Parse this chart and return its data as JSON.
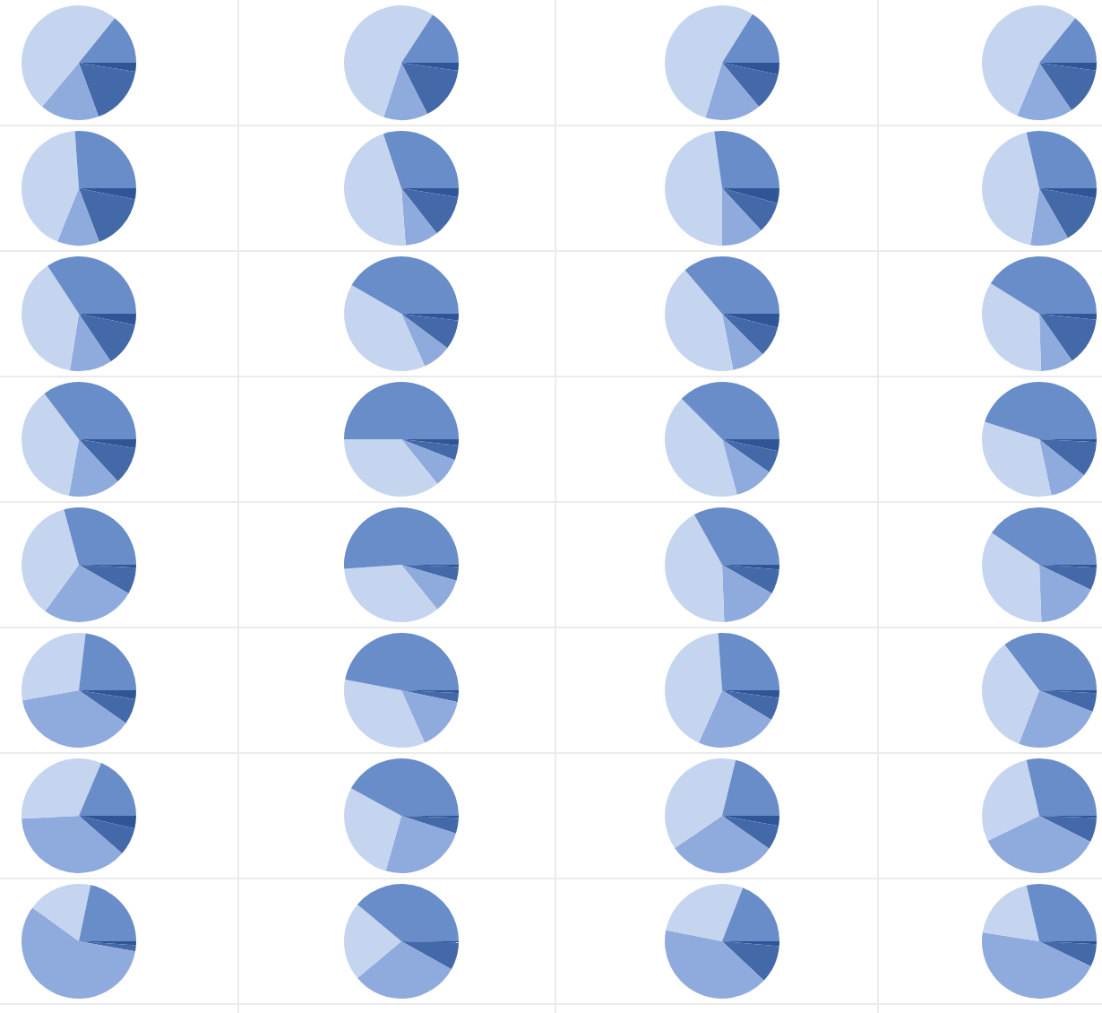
{
  "chart_data": [
    {
      "type": "pie",
      "categories": [
        null,
        null,
        null,
        null,
        null
      ],
      "values": [
        2.5,
        16.9,
        16.7,
        49.7,
        14.2
      ],
      "colors": [
        "#2f5597",
        "#4469a9",
        "#8faadc",
        "#c5d5f0",
        "#698dc8"
      ]
    },
    {
      "type": "pie",
      "categories": [
        null,
        null,
        null,
        null,
        null
      ],
      "values": [
        2.2,
        15.3,
        12.5,
        54.2,
        15.8
      ],
      "colors": [
        "#2f5597",
        "#4469a9",
        "#8faadc",
        "#c5d5f0",
        "#698dc8"
      ]
    },
    {
      "type": "pie",
      "categories": [
        null,
        null,
        null,
        null,
        null
      ],
      "values": [
        3.3,
        10.6,
        15.8,
        54.2,
        16.1
      ],
      "colors": [
        "#2f5597",
        "#4469a9",
        "#8faadc",
        "#c5d5f0",
        "#698dc8"
      ]
    },
    {
      "type": "pie",
      "categories": [
        null,
        null,
        null,
        null,
        null
      ],
      "values": [
        2.2,
        13.3,
        15.8,
        54.5,
        14.2
      ],
      "colors": [
        "#2f5597",
        "#4469a9",
        "#8faadc",
        "#c5d5f0",
        "#698dc8"
      ]
    },
    {
      "type": "pie",
      "categories": [
        null,
        null,
        null,
        null,
        null
      ],
      "values": [
        3.1,
        16.1,
        11.9,
        42.8,
        26.1
      ],
      "colors": [
        "#2f5597",
        "#4469a9",
        "#8faadc",
        "#c5d5f0",
        "#698dc8"
      ]
    },
    {
      "type": "pie",
      "categories": [
        null,
        null,
        null,
        null,
        null
      ],
      "values": [
        2.5,
        11.9,
        9.4,
        46.1,
        30.1
      ],
      "colors": [
        "#2f5597",
        "#4469a9",
        "#8faadc",
        "#c5d5f0",
        "#698dc8"
      ]
    },
    {
      "type": "pie",
      "categories": [
        null,
        null,
        null,
        null,
        null
      ],
      "values": [
        4.2,
        8.9,
        11.9,
        47.8,
        27.2
      ],
      "colors": [
        "#2f5597",
        "#4469a9",
        "#8faadc",
        "#c5d5f0",
        "#698dc8"
      ]
    },
    {
      "type": "pie",
      "categories": [
        null,
        null,
        null,
        null,
        null
      ],
      "values": [
        2.8,
        13.9,
        10.8,
        43.9,
        28.6
      ],
      "colors": [
        "#2f5597",
        "#4469a9",
        "#8faadc",
        "#c5d5f0",
        "#698dc8"
      ]
    },
    {
      "type": "pie",
      "categories": [
        null,
        null,
        null,
        null,
        null
      ],
      "values": [
        3.1,
        12.5,
        11.9,
        38.3,
        34.2
      ],
      "colors": [
        "#2f5597",
        "#4469a9",
        "#8faadc",
        "#c5d5f0",
        "#698dc8"
      ]
    },
    {
      "type": "pie",
      "categories": [
        null,
        null,
        null,
        null,
        null
      ],
      "values": [
        1.9,
        8.3,
        8.1,
        40.0,
        41.7
      ],
      "colors": [
        "#2f5597",
        "#4469a9",
        "#8faadc",
        "#c5d5f0",
        "#698dc8"
      ]
    },
    {
      "type": "pie",
      "categories": [
        null,
        null,
        null,
        null,
        null
      ],
      "values": [
        3.9,
        8.6,
        9.4,
        41.9,
        36.2
      ],
      "colors": [
        "#2f5597",
        "#4469a9",
        "#8faadc",
        "#c5d5f0",
        "#698dc8"
      ]
    },
    {
      "type": "pie",
      "categories": [
        null,
        null,
        null,
        null,
        null
      ],
      "values": [
        1.7,
        13.6,
        9.2,
        34.4,
        41.1
      ],
      "colors": [
        "#2f5597",
        "#4469a9",
        "#8faadc",
        "#c5d5f0",
        "#698dc8"
      ]
    },
    {
      "type": "pie",
      "categories": [
        null,
        null,
        null,
        null,
        null
      ],
      "values": [
        2.5,
        10.6,
        14.7,
        36.9,
        35.3
      ],
      "colors": [
        "#2f5597",
        "#4469a9",
        "#8faadc",
        "#c5d5f0",
        "#698dc8"
      ]
    },
    {
      "type": "pie",
      "categories": [
        null,
        null,
        null,
        null,
        null
      ],
      "values": [
        1.7,
        4.2,
        8.3,
        35.8,
        50.0
      ],
      "colors": [
        "#2f5597",
        "#4469a9",
        "#8faadc",
        "#c5d5f0",
        "#698dc8"
      ]
    },
    {
      "type": "pie",
      "categories": [
        null,
        null,
        null,
        null,
        null
      ],
      "values": [
        3.3,
        6.4,
        11.1,
        41.7,
        37.5
      ],
      "colors": [
        "#2f5597",
        "#4469a9",
        "#8faadc",
        "#c5d5f0",
        "#698dc8"
      ]
    },
    {
      "type": "pie",
      "categories": [
        null,
        null,
        null,
        null,
        null
      ],
      "values": [
        0.8,
        10.0,
        10.8,
        33.3,
        45.1
      ],
      "colors": [
        "#2f5597",
        "#4469a9",
        "#8faadc",
        "#c5d5f0",
        "#698dc8"
      ]
    },
    {
      "type": "pie",
      "categories": [
        null,
        null,
        null,
        null,
        null
      ],
      "values": [
        0.8,
        7.5,
        26.7,
        35.8,
        29.2
      ],
      "colors": [
        "#2f5597",
        "#4469a9",
        "#8faadc",
        "#c5d5f0",
        "#698dc8"
      ]
    },
    {
      "type": "pie",
      "categories": [
        null,
        null,
        null,
        null,
        null
      ],
      "values": [
        0.6,
        3.9,
        9.7,
        34.7,
        51.1
      ],
      "colors": [
        "#2f5597",
        "#4469a9",
        "#8faadc",
        "#c5d5f0",
        "#698dc8"
      ]
    },
    {
      "type": "pie",
      "categories": [
        null,
        null,
        null,
        null,
        null
      ],
      "values": [
        1.4,
        6.9,
        16.1,
        42.5,
        33.1
      ],
      "colors": [
        "#2f5597",
        "#4469a9",
        "#8faadc",
        "#c5d5f0",
        "#698dc8"
      ]
    },
    {
      "type": "pie",
      "categories": [
        null,
        null,
        null,
        null,
        null
      ],
      "values": [
        0.8,
        6.4,
        17.2,
        35.0,
        40.6
      ],
      "colors": [
        "#2f5597",
        "#4469a9",
        "#8faadc",
        "#c5d5f0",
        "#698dc8"
      ]
    },
    {
      "type": "pie",
      "categories": [
        null,
        null,
        null,
        null,
        null
      ],
      "values": [
        2.5,
        7.2,
        37.5,
        29.7,
        23.1
      ],
      "colors": [
        "#2f5597",
        "#4469a9",
        "#8faadc",
        "#c5d5f0",
        "#698dc8"
      ]
    },
    {
      "type": "pie",
      "categories": [
        null,
        null,
        null,
        null,
        null
      ],
      "values": [
        0.8,
        2.5,
        15.0,
        34.7,
        47.0
      ],
      "colors": [
        "#2f5597",
        "#4469a9",
        "#8faadc",
        "#c5d5f0",
        "#698dc8"
      ]
    },
    {
      "type": "pie",
      "categories": [
        null,
        null,
        null,
        null,
        null
      ],
      "values": [
        2.2,
        6.4,
        23.1,
        42.2,
        26.1
      ],
      "colors": [
        "#2f5597",
        "#4469a9",
        "#8faadc",
        "#c5d5f0",
        "#698dc8"
      ]
    },
    {
      "type": "pie",
      "categories": [
        null,
        null,
        null,
        null,
        null
      ],
      "values": [
        0.8,
        5.3,
        24.7,
        33.9,
        35.3
      ],
      "colors": [
        "#2f5597",
        "#4469a9",
        "#8faadc",
        "#c5d5f0",
        "#698dc8"
      ]
    },
    {
      "type": "pie",
      "categories": [
        null,
        null,
        null,
        null,
        null
      ],
      "values": [
        3.6,
        7.8,
        37.8,
        32.2,
        18.6
      ],
      "colors": [
        "#2f5597",
        "#4469a9",
        "#8faadc",
        "#c5d5f0",
        "#698dc8"
      ]
    },
    {
      "type": "pie",
      "categories": [
        null,
        null,
        null,
        null,
        null
      ],
      "values": [
        0.6,
        4.4,
        24.4,
        28.6,
        42.0
      ],
      "colors": [
        "#2f5597",
        "#4469a9",
        "#8faadc",
        "#c5d5f0",
        "#698dc8"
      ]
    },
    {
      "type": "pie",
      "categories": [
        null,
        null,
        null,
        null,
        null
      ],
      "values": [
        2.8,
        6.9,
        30.8,
        38.3,
        21.2
      ],
      "colors": [
        "#2f5597",
        "#4469a9",
        "#8faadc",
        "#c5d5f0",
        "#698dc8"
      ]
    },
    {
      "type": "pie",
      "categories": [
        null,
        null,
        null,
        null,
        null
      ],
      "values": [
        0.6,
        6.9,
        35.3,
        28.6,
        28.6
      ],
      "colors": [
        "#2f5597",
        "#4469a9",
        "#8faadc",
        "#c5d5f0",
        "#698dc8"
      ]
    },
    {
      "type": "pie",
      "categories": [
        null,
        null,
        null,
        null,
        null
      ],
      "values": [
        1.1,
        1.7,
        57.2,
        18.3,
        21.7
      ],
      "colors": [
        "#2f5597",
        "#4469a9",
        "#8faadc",
        "#c5d5f0",
        "#698dc8"
      ]
    },
    {
      "type": "pie",
      "categories": [
        null,
        null,
        null,
        null,
        null
      ],
      "values": [
        0.3,
        7.8,
        30.8,
        22.2,
        38.9
      ],
      "colors": [
        "#2f5597",
        "#4469a9",
        "#8faadc",
        "#c5d5f0",
        "#698dc8"
      ]
    },
    {
      "type": "pie",
      "categories": [
        null,
        null,
        null,
        null,
        null
      ],
      "values": [
        1.4,
        10.6,
        41.1,
        27.8,
        19.1
      ],
      "colors": [
        "#2f5597",
        "#4469a9",
        "#8faadc",
        "#c5d5f0",
        "#698dc8"
      ]
    },
    {
      "type": "pie",
      "categories": [
        null,
        null,
        null,
        null,
        null
      ],
      "values": [
        0.8,
        6.4,
        45.3,
        18.9,
        28.6
      ],
      "colors": [
        "#2f5597",
        "#4469a9",
        "#8faadc",
        "#c5d5f0",
        "#698dc8"
      ]
    }
  ]
}
